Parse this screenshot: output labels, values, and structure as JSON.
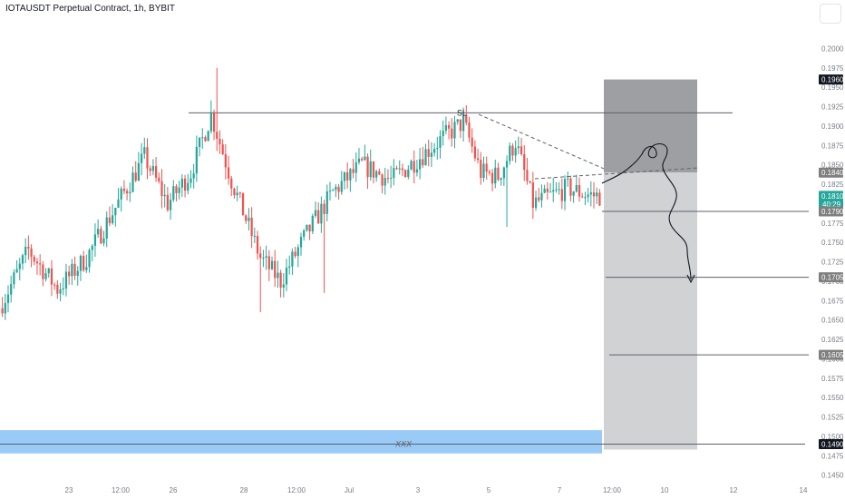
{
  "header": {
    "title": "IOTAUSDT Perpetual Contract, 1h, BYBIT"
  },
  "colors": {
    "up": "#26a69a",
    "down": "#ef5350",
    "grid_text": "#787b86",
    "stop_zone": "#9e9fa3",
    "target_zone": "#d1d2d4",
    "blue_zone": "#8fc5f5",
    "price_tag": "#26a69a",
    "dark_tag": "#131722",
    "gray_tag": "#7f7f7f"
  },
  "chart_data": {
    "type": "candlestick",
    "y_axis": {
      "ylim": [
        0.1445,
        0.2025
      ],
      "ticks": [
        "0.2000",
        "0.1975",
        "0.1950",
        "0.1925",
        "0.1900",
        "0.1875",
        "0.1850",
        "0.1825",
        "0.1800",
        "0.1775",
        "0.1750",
        "0.1725",
        "0.1700",
        "0.1675",
        "0.1650",
        "0.1625",
        "0.1600",
        "0.1575",
        "0.1550",
        "0.1525",
        "0.1500",
        "0.1475",
        "0.1450"
      ]
    },
    "x_axis": {
      "ticks": [
        "23",
        "12:00",
        "26",
        "28",
        "12:00",
        "Jul",
        "3",
        "5",
        "7",
        "12:00",
        "10",
        "12",
        "14"
      ]
    },
    "candles": {
      "count": 160,
      "start_price": 0.1665,
      "end_price": 0.181,
      "low": 0.1655,
      "high": 0.1975
    },
    "levels": [
      {
        "label": "SL",
        "price": 0.1917
      },
      {
        "price": 0.179
      },
      {
        "price": 0.1705
      },
      {
        "price": 0.1605
      },
      {
        "price": 0.149
      }
    ],
    "price_tags": [
      {
        "value": "0.1960",
        "style": "dark"
      },
      {
        "value": "0.1840",
        "style": "gray"
      },
      {
        "value": "0.1810",
        "sub": "40:29",
        "style": "current"
      },
      {
        "value": "0.1790",
        "style": "gray"
      },
      {
        "value": "0.1705",
        "style": "gray"
      },
      {
        "value": "0.1605",
        "style": "gray"
      },
      {
        "value": "0.1490",
        "style": "dark"
      }
    ],
    "position": {
      "stop_top": 0.196,
      "entry": 0.184,
      "target": 0.149
    },
    "zone": {
      "label": "XXX",
      "top": 0.1508,
      "bottom": 0.1478
    },
    "annotations": [
      "SL",
      "XXX"
    ]
  }
}
